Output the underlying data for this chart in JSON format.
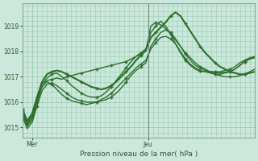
{
  "title": "",
  "xlabel": "Pression niveau de la mer( hPa )",
  "bg_color": "#cce8dc",
  "grid_color": "#99ccb3",
  "line_color": "#2d6e2d",
  "ylim": [
    1014.6,
    1019.9
  ],
  "xlim": [
    0,
    48
  ],
  "yticks": [
    1015,
    1016,
    1017,
    1018,
    1019
  ],
  "xtick_positions": [
    2,
    26
  ],
  "xtick_labels": [
    "Mer",
    "Jeu"
  ],
  "vline_x": 26,
  "lines": [
    {
      "y": [
        1015.7,
        1015.1,
        1015.4,
        1016.1,
        1016.7,
        1016.85,
        1016.9,
        1016.95,
        1016.9,
        1017.0,
        1017.05,
        1017.1,
        1017.15,
        1017.2,
        1017.25,
        1017.3,
        1017.35,
        1017.4,
        1017.45,
        1017.5,
        1017.55,
        1017.6,
        1017.7,
        1017.8,
        1017.9,
        1018.0,
        1019.0,
        1019.15,
        1019.05,
        1018.9,
        1018.7,
        1018.45,
        1018.2,
        1017.95,
        1017.75,
        1017.55,
        1017.4,
        1017.3,
        1017.2,
        1017.1,
        1017.05,
        1017.0,
        1017.0,
        1017.0,
        1017.05,
        1017.1,
        1017.2,
        1017.3
      ],
      "lw": 1.0
    },
    {
      "y": [
        1015.55,
        1015.05,
        1015.3,
        1016.0,
        1016.6,
        1016.8,
        1016.7,
        1016.5,
        1016.3,
        1016.15,
        1016.05,
        1016.0,
        1015.95,
        1015.9,
        1015.95,
        1016.0,
        1016.1,
        1016.2,
        1016.35,
        1016.55,
        1016.75,
        1016.95,
        1017.15,
        1017.35,
        1017.5,
        1017.65,
        1018.1,
        1018.35,
        1018.55,
        1018.6,
        1018.5,
        1018.3,
        1018.0,
        1017.7,
        1017.5,
        1017.35,
        1017.25,
        1017.2,
        1017.15,
        1017.1,
        1017.1,
        1017.15,
        1017.2,
        1017.3,
        1017.45,
        1017.6,
        1017.7,
        1017.75
      ],
      "lw": 1.0
    },
    {
      "y": [
        1015.45,
        1014.95,
        1015.2,
        1015.85,
        1016.45,
        1016.7,
        1016.75,
        1016.65,
        1016.5,
        1016.35,
        1016.2,
        1016.1,
        1016.05,
        1016.0,
        1016.0,
        1016.0,
        1016.05,
        1016.1,
        1016.2,
        1016.35,
        1016.55,
        1016.8,
        1017.05,
        1017.25,
        1017.4,
        1017.55,
        1018.2,
        1018.5,
        1018.75,
        1018.85,
        1018.75,
        1018.5,
        1018.2,
        1017.9,
        1017.65,
        1017.45,
        1017.35,
        1017.25,
        1017.2,
        1017.18,
        1017.15,
        1017.18,
        1017.2,
        1017.3,
        1017.45,
        1017.6,
        1017.7,
        1017.78
      ],
      "lw": 1.0
    },
    {
      "y": [
        1015.65,
        1015.15,
        1015.45,
        1016.1,
        1016.7,
        1016.95,
        1017.1,
        1017.15,
        1017.0,
        1016.85,
        1016.65,
        1016.5,
        1016.35,
        1016.25,
        1016.2,
        1016.2,
        1016.25,
        1016.4,
        1016.6,
        1016.85,
        1017.1,
        1017.35,
        1017.6,
        1017.8,
        1017.95,
        1018.1,
        1018.75,
        1019.0,
        1019.2,
        1019.0,
        1018.7,
        1018.3,
        1017.95,
        1017.65,
        1017.45,
        1017.3,
        1017.22,
        1017.2,
        1017.2,
        1017.2,
        1017.2,
        1017.25,
        1017.3,
        1017.4,
        1017.55,
        1017.65,
        1017.75,
        1017.8
      ],
      "lw": 1.0
    },
    {
      "y": [
        1015.75,
        1015.25,
        1015.55,
        1016.2,
        1016.8,
        1017.1,
        1017.2,
        1017.25,
        1017.2,
        1017.1,
        1017.0,
        1016.9,
        1016.8,
        1016.7,
        1016.6,
        1016.55,
        1016.5,
        1016.55,
        1016.65,
        1016.8,
        1017.0,
        1017.2,
        1017.4,
        1017.65,
        1017.85,
        1018.05,
        1018.55,
        1018.75,
        1018.95,
        1019.15,
        1019.4,
        1019.55,
        1019.4,
        1019.1,
        1018.8,
        1018.5,
        1018.2,
        1017.95,
        1017.75,
        1017.55,
        1017.4,
        1017.3,
        1017.2,
        1017.15,
        1017.1,
        1017.1,
        1017.15,
        1017.2
      ],
      "lw": 1.5
    }
  ]
}
